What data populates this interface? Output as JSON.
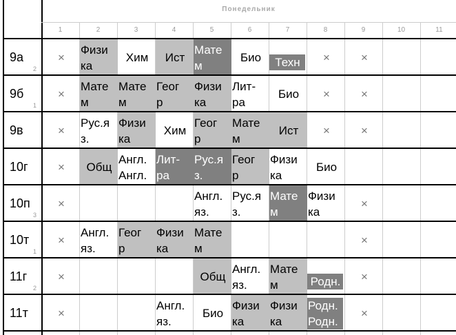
{
  "header": {
    "day": "Понедельник",
    "periods": [
      "1",
      "2",
      "3",
      "4",
      "5",
      "6",
      "7",
      "8",
      "9",
      "10",
      "11"
    ]
  },
  "shades": {
    "light": "#c0c0c0",
    "dark": "#808080"
  },
  "table": {
    "rows": [
      {
        "class": "9а",
        "sub": "2",
        "cells": [
          {
            "lines": [
              "×"
            ]
          },
          {
            "lines": [
              "Физи",
              "ка"
            ],
            "shade": "light"
          },
          {
            "lines": [
              "Хим"
            ]
          },
          {
            "lines": [
              "Ист"
            ],
            "shade": "light"
          },
          {
            "lines": [
              "Мате",
              "м"
            ],
            "shade": "dark"
          },
          {
            "lines": [
              "Био"
            ]
          },
          {
            "lines": [
              "Техн"
            ],
            "shade": "dark",
            "bar": true
          },
          {
            "lines": [
              "×"
            ]
          },
          {
            "lines": [
              "×"
            ]
          },
          null,
          null
        ]
      },
      {
        "class": "9б",
        "sub": "1",
        "cells": [
          {
            "lines": [
              "×"
            ]
          },
          {
            "lines": [
              "Мате",
              "м"
            ],
            "shade": "light"
          },
          {
            "lines": [
              "Мате",
              "м"
            ],
            "shade": "light"
          },
          {
            "lines": [
              "Геог",
              "р"
            ],
            "shade": "light"
          },
          {
            "lines": [
              "Физи",
              "ка"
            ],
            "shade": "light"
          },
          {
            "lines": [
              "Лит-",
              "ра"
            ]
          },
          {
            "lines": [
              "Био"
            ]
          },
          {
            "lines": [
              "×"
            ]
          },
          {
            "lines": [
              "×"
            ]
          },
          null,
          null
        ]
      },
      {
        "class": "9в",
        "cells": [
          {
            "lines": [
              "×"
            ]
          },
          {
            "lines": [
              "Рус.я",
              "з."
            ]
          },
          {
            "lines": [
              "Физи",
              "ка"
            ],
            "shade": "light"
          },
          {
            "lines": [
              "Хим"
            ]
          },
          {
            "lines": [
              "Геог",
              "р"
            ],
            "shade": "light"
          },
          {
            "lines": [
              "Мате",
              "м"
            ],
            "shade": "light"
          },
          {
            "lines": [
              "Ист"
            ],
            "shade": "light"
          },
          {
            "lines": [
              "×"
            ]
          },
          {
            "lines": [
              "×"
            ]
          },
          null,
          null
        ]
      },
      {
        "class": "10г",
        "cells": [
          {
            "lines": [
              "×"
            ]
          },
          {
            "lines": [
              "Общ"
            ],
            "shade": "light"
          },
          {
            "lines": [
              "Англ.",
              "Англ."
            ]
          },
          {
            "lines": [
              "Лит-",
              "ра"
            ],
            "shade": "dark"
          },
          {
            "lines": [
              "Рус.я",
              "з."
            ],
            "shade": "dark"
          },
          {
            "lines": [
              "Геог",
              "р"
            ],
            "shade": "light"
          },
          {
            "lines": [
              "Физи",
              "ка"
            ]
          },
          {
            "lines": [
              "Био"
            ]
          },
          null,
          null,
          null
        ]
      },
      {
        "class": "10п",
        "sub": "3",
        "cells": [
          {
            "lines": [
              "×"
            ]
          },
          null,
          null,
          null,
          {
            "lines": [
              "Англ.",
              "яз."
            ]
          },
          {
            "lines": [
              "Рус.я",
              "з."
            ]
          },
          {
            "lines": [
              "Мате",
              "м"
            ],
            "shade": "dark"
          },
          {
            "lines": [
              "Физи",
              "ка"
            ]
          },
          {
            "lines": [
              "×"
            ]
          },
          null,
          null
        ]
      },
      {
        "class": "10т",
        "sub": "1",
        "cells": [
          {
            "lines": [
              "×"
            ]
          },
          {
            "lines": [
              "Англ.",
              "яз."
            ]
          },
          {
            "lines": [
              "Геог",
              "р"
            ],
            "shade": "light"
          },
          {
            "lines": [
              "Физи",
              "ка"
            ],
            "shade": "light"
          },
          {
            "lines": [
              "Мате",
              "м"
            ],
            "shade": "light"
          },
          null,
          null,
          null,
          {
            "lines": [
              "×"
            ]
          },
          null,
          null
        ]
      },
      {
        "class": "11г",
        "sub": "2",
        "cells": [
          {
            "lines": [
              "×"
            ]
          },
          null,
          null,
          null,
          {
            "lines": [
              "Общ"
            ],
            "shade": "light"
          },
          {
            "lines": [
              "Англ.",
              "яз."
            ]
          },
          {
            "lines": [
              "Мате",
              "м"
            ],
            "shade": "light"
          },
          {
            "lines": [
              "Родн."
            ],
            "shade": "dark",
            "bar": true
          },
          {
            "lines": [
              "×"
            ]
          },
          null,
          null
        ]
      },
      {
        "class": "11т",
        "cells": [
          {
            "lines": [
              "×"
            ]
          },
          null,
          null,
          {
            "lines": [
              "Англ.",
              "яз."
            ]
          },
          {
            "lines": [
              "Био"
            ]
          },
          {
            "lines": [
              "Физи",
              "ка"
            ],
            "shade": "light"
          },
          {
            "lines": [
              "Физи",
              "ка"
            ],
            "shade": "light"
          },
          {
            "lines": [
              "Родн.",
              "Родн."
            ],
            "shade": "dark",
            "bar": true
          },
          {
            "lines": [
              "×"
            ]
          },
          null,
          null
        ]
      }
    ]
  }
}
